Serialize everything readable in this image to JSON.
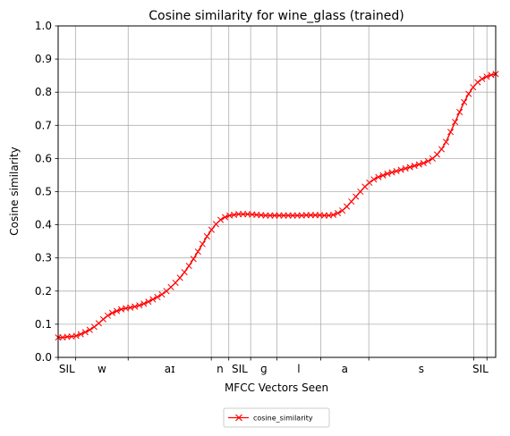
{
  "chart_data": {
    "type": "line",
    "title": "Cosine similarity for wine_glass (trained)",
    "xlabel": "MFCC Vectors Seen",
    "ylabel": "Cosine similarity",
    "ylim": [
      0,
      1
    ],
    "yticks": [
      "0.0",
      "0.1",
      "0.2",
      "0.3",
      "0.4",
      "0.5",
      "0.6",
      "0.7",
      "0.8",
      "0.9",
      "1.0"
    ],
    "grid": true,
    "legend_position": "bottom-center",
    "x_range": [
      0,
      100
    ],
    "phones": [
      "SIL",
      "w",
      "aɪ",
      "n",
      "SIL",
      "ɡ",
      "l",
      "a",
      "s",
      "SIL"
    ],
    "segments": [
      {
        "label": "SIL",
        "start": 0,
        "end": 4
      },
      {
        "label": "w",
        "start": 4,
        "end": 16
      },
      {
        "label": "aɪ",
        "start": 16,
        "end": 35
      },
      {
        "label": "n",
        "start": 35,
        "end": 39
      },
      {
        "label": "SIL",
        "start": 39,
        "end": 44
      },
      {
        "label": "ɡ",
        "start": 44,
        "end": 50
      },
      {
        "label": "l",
        "start": 50,
        "end": 60
      },
      {
        "label": "a",
        "start": 60,
        "end": 71
      },
      {
        "label": "s",
        "start": 71,
        "end": 95
      },
      {
        "label": "SIL",
        "start": 95,
        "end": 98
      }
    ],
    "series": [
      {
        "name": "cosine_similarity",
        "color": "#ff0000",
        "marker": "x",
        "y": [
          0.06,
          0.06,
          0.062,
          0.063,
          0.065,
          0.07,
          0.076,
          0.083,
          0.092,
          0.103,
          0.115,
          0.126,
          0.134,
          0.14,
          0.145,
          0.148,
          0.15,
          0.153,
          0.157,
          0.162,
          0.168,
          0.175,
          0.182,
          0.19,
          0.2,
          0.212,
          0.225,
          0.24,
          0.257,
          0.276,
          0.297,
          0.319,
          0.342,
          0.365,
          0.385,
          0.402,
          0.415,
          0.423,
          0.428,
          0.43,
          0.432,
          0.432,
          0.432,
          0.431,
          0.43,
          0.429,
          0.428,
          0.428,
          0.428,
          0.428,
          0.428,
          0.428,
          0.428,
          0.428,
          0.428,
          0.429,
          0.429,
          0.429,
          0.429,
          0.428,
          0.428,
          0.43,
          0.435,
          0.443,
          0.455,
          0.47,
          0.485,
          0.5,
          0.515,
          0.527,
          0.537,
          0.544,
          0.549,
          0.554,
          0.558,
          0.562,
          0.566,
          0.57,
          0.574,
          0.578,
          0.582,
          0.586,
          0.592,
          0.6,
          0.612,
          0.628,
          0.65,
          0.68,
          0.71,
          0.74,
          0.77,
          0.795,
          0.815,
          0.83,
          0.84,
          0.847,
          0.852,
          0.855
        ]
      }
    ]
  }
}
